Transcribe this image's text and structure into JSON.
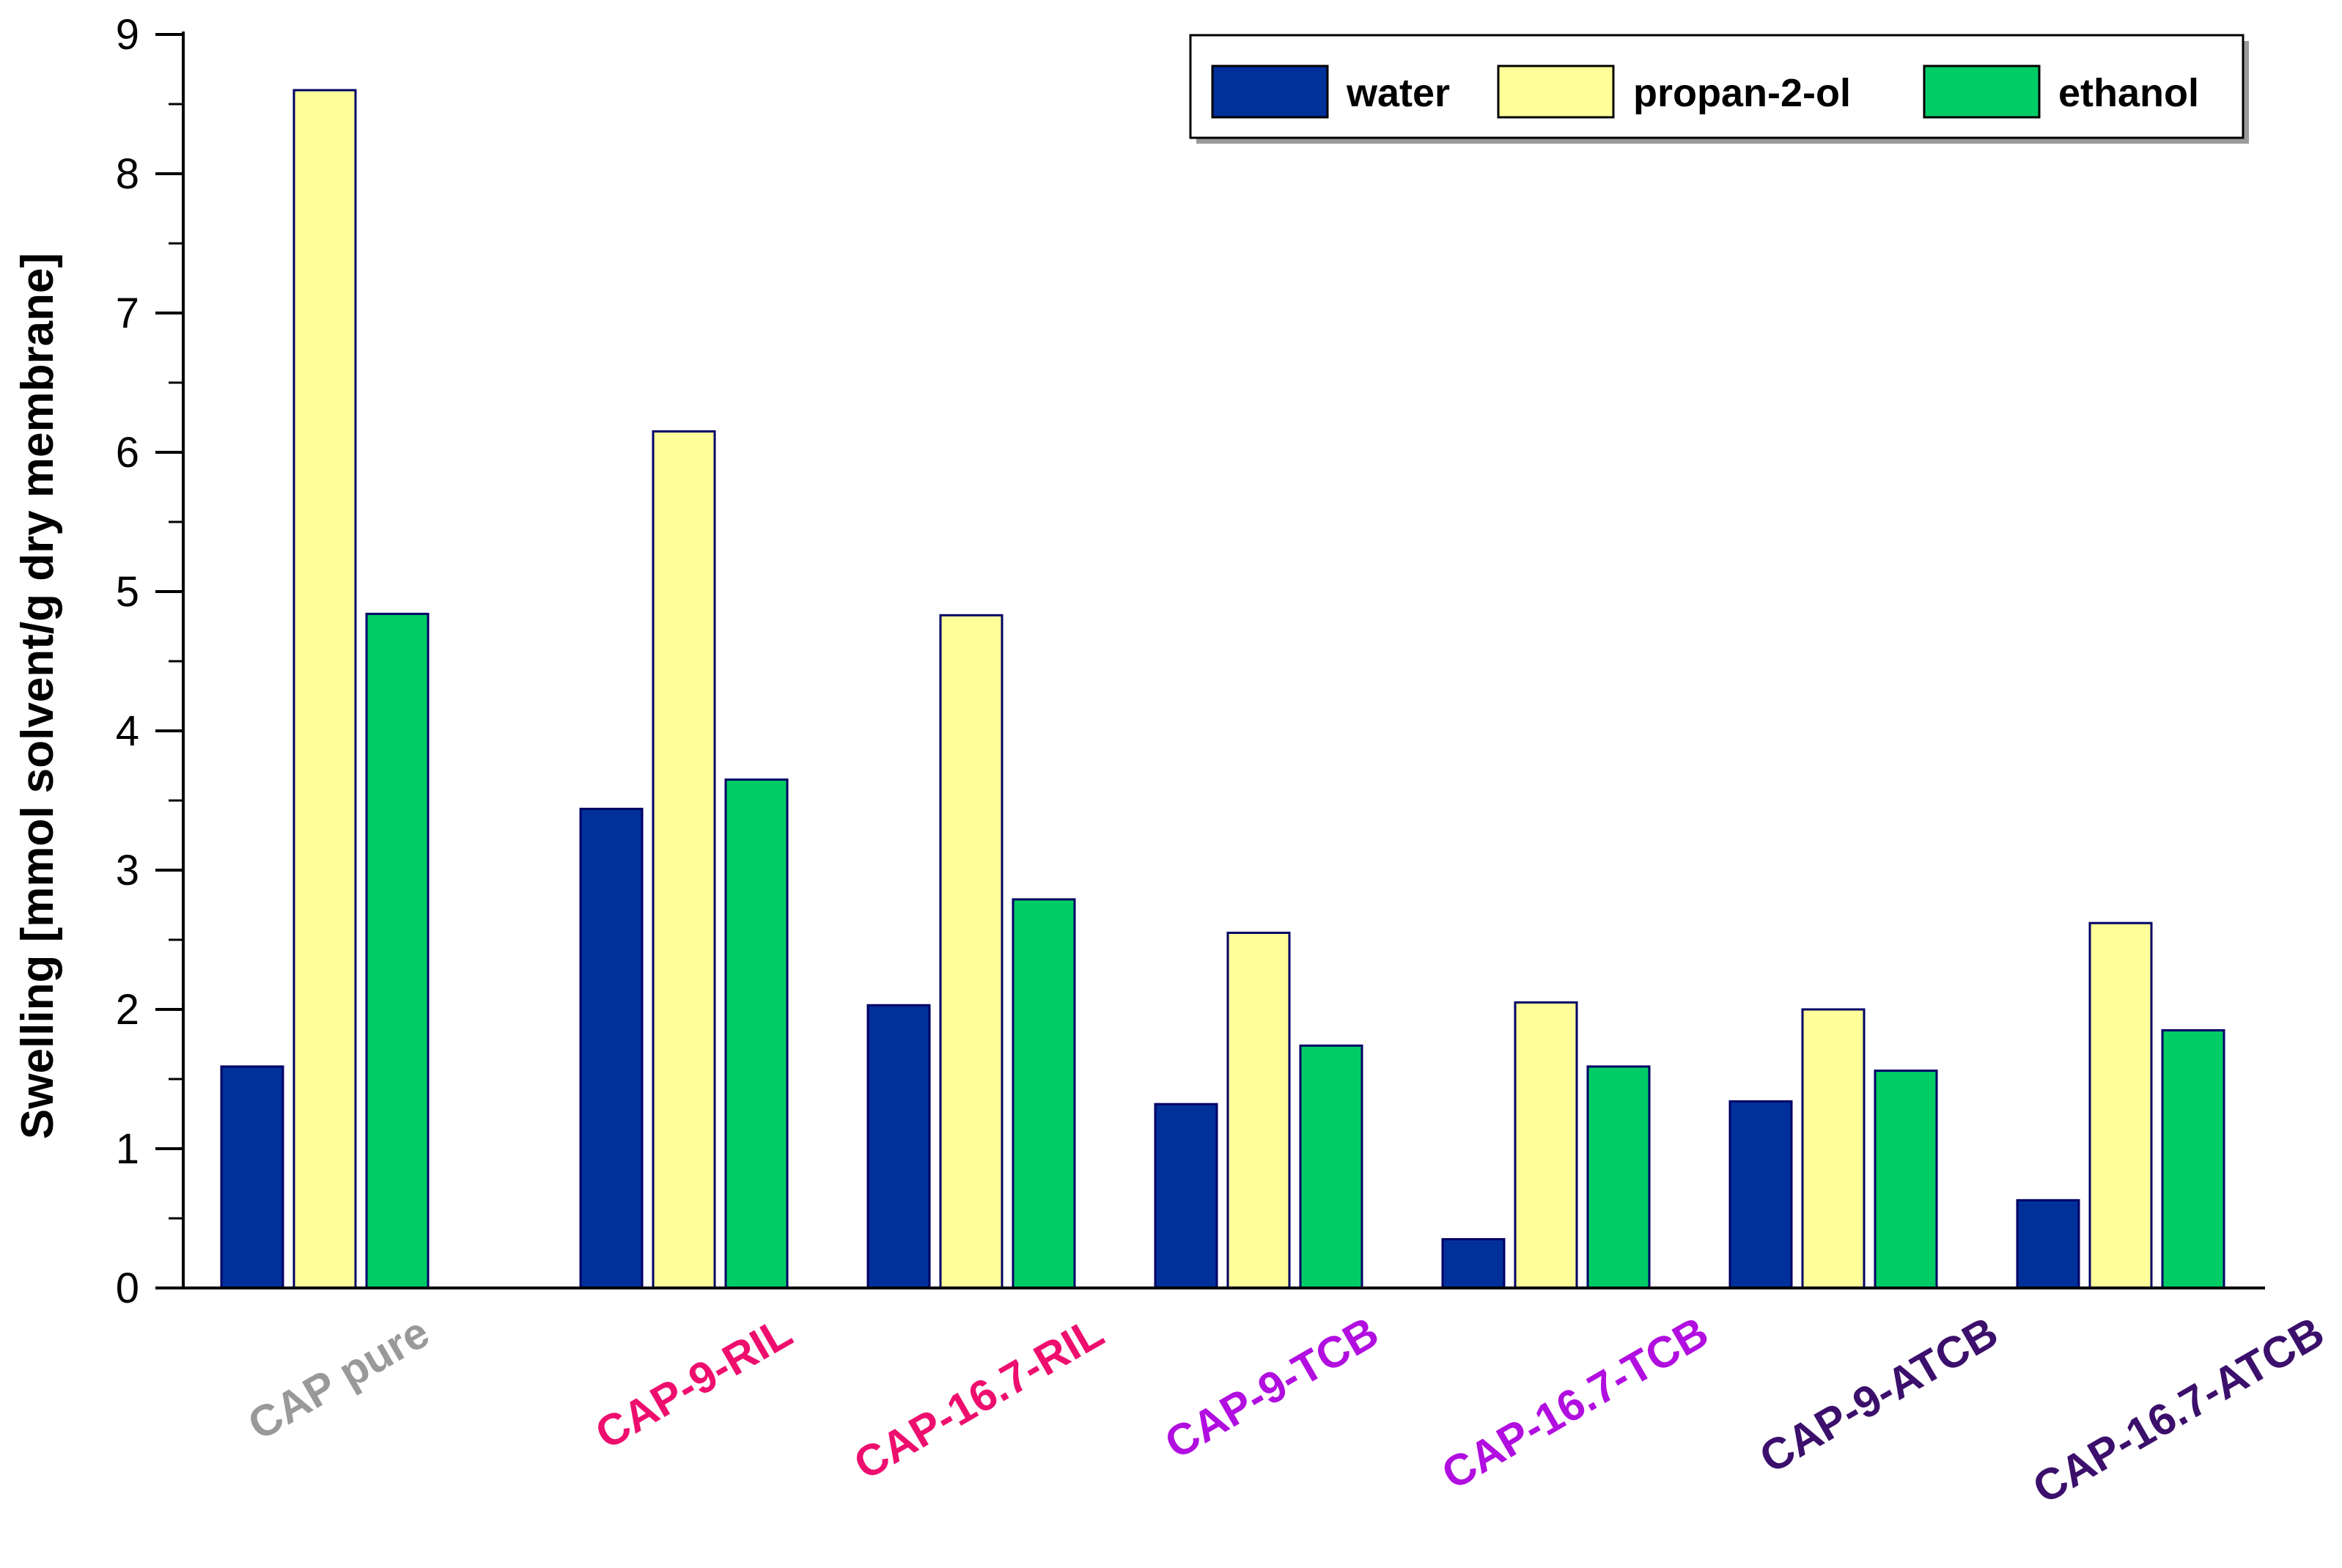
{
  "chart_data": {
    "type": "bar",
    "title": "",
    "xlabel": "",
    "ylabel": "Swelling [mmol solvent/g dry membrane]",
    "ylim": [
      0,
      9
    ],
    "yticks": [
      0,
      1,
      2,
      3,
      4,
      5,
      6,
      7,
      8,
      9
    ],
    "grid": false,
    "legend_position": "top-right",
    "categories": [
      "CAP pure",
      "CAP-9-RIL",
      "CAP-16.7-RIL",
      "CAP-9-TCB",
      "CAP-16.7-TCB",
      "CAP-9-ATCB",
      "CAP-16.7-ATCB"
    ],
    "category_colors": [
      "#999999",
      "#ee0e6e",
      "#ee0e6e",
      "#b10ee0",
      "#b10ee0",
      "#3b0f6b",
      "#3b0f6b"
    ],
    "series": [
      {
        "name": "water",
        "color": "#00309a",
        "values": [
          1.59,
          3.44,
          2.03,
          1.32,
          0.35,
          1.34,
          0.63
        ]
      },
      {
        "name": "propan-2-ol",
        "color": "#ffff99",
        "values": [
          8.6,
          6.15,
          4.83,
          2.55,
          2.05,
          2.0,
          2.62
        ]
      },
      {
        "name": "ethanol",
        "color": "#00cc66",
        "values": [
          4.84,
          3.65,
          2.79,
          1.74,
          1.59,
          1.56,
          1.85
        ]
      }
    ]
  }
}
